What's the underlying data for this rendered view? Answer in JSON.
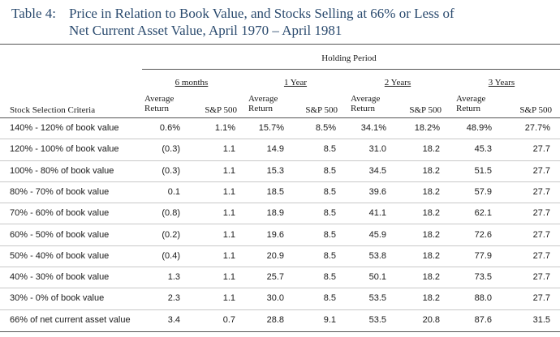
{
  "title": {
    "label": "Table 4:",
    "line1": "Price in Relation to Book Value, and Stocks Selling at 66% or Less of",
    "line2": "Net Current Asset Value, April 1970 – April 1981"
  },
  "holding_period_label": "Holding Period",
  "periods": [
    "6 months",
    "1 Year",
    "2 Years",
    "3 Years"
  ],
  "col_headers": {
    "avg_line1": "Average",
    "avg_line2": "Return",
    "sp": "S&P 500",
    "criteria": "Stock Selection Criteria"
  },
  "rows": [
    {
      "criteria": "140% - 120% of book value",
      "v": [
        "0.6%",
        "1.1%",
        "15.7%",
        "8.5%",
        "34.1%",
        "18.2%",
        "48.9%",
        "27.7%"
      ]
    },
    {
      "criteria": "120% - 100% of book value",
      "v": [
        "(0.3)",
        "1.1",
        "14.9",
        "8.5",
        "31.0",
        "18.2",
        "45.3",
        "27.7"
      ]
    },
    {
      "criteria": "100% - 80% of book value",
      "v": [
        "(0.3)",
        "1.1",
        "15.3",
        "8.5",
        "34.5",
        "18.2",
        "51.5",
        "27.7"
      ]
    },
    {
      "criteria": "80% - 70% of book value",
      "v": [
        "0.1",
        "1.1",
        "18.5",
        "8.5",
        "39.6",
        "18.2",
        "57.9",
        "27.7"
      ]
    },
    {
      "criteria": "70% - 60% of book value",
      "v": [
        "(0.8)",
        "1.1",
        "18.9",
        "8.5",
        "41.1",
        "18.2",
        "62.1",
        "27.7"
      ]
    },
    {
      "criteria": "60% - 50% of book value",
      "v": [
        "(0.2)",
        "1.1",
        "19.6",
        "8.5",
        "45.9",
        "18.2",
        "72.6",
        "27.7"
      ]
    },
    {
      "criteria": "50% - 40% of book value",
      "v": [
        "(0.4)",
        "1.1",
        "20.9",
        "8.5",
        "53.8",
        "18.2",
        "77.9",
        "27.7"
      ]
    },
    {
      "criteria": "40% - 30% of book value",
      "v": [
        "1.3",
        "1.1",
        "25.7",
        "8.5",
        "50.1",
        "18.2",
        "73.5",
        "27.7"
      ]
    },
    {
      "criteria": "30% - 0% of book value",
      "v": [
        "2.3",
        "1.1",
        "30.0",
        "8.5",
        "53.5",
        "18.2",
        "88.0",
        "27.7"
      ]
    },
    {
      "criteria": "66% of net current asset value",
      "v": [
        "3.4",
        "0.7",
        "28.8",
        "9.1",
        "53.5",
        "20.8",
        "87.6",
        "31.5"
      ]
    }
  ]
}
